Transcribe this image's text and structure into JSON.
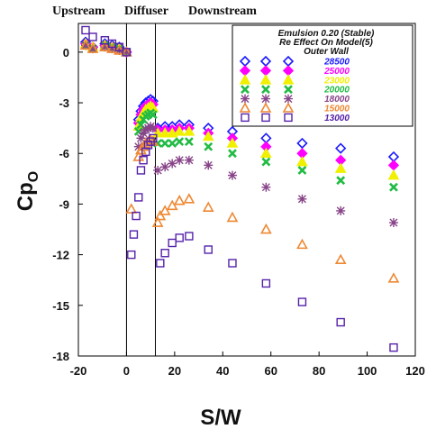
{
  "chart_data": {
    "type": "scatter",
    "region_labels": [
      "Upstream",
      "Diffuser",
      "Downstream"
    ],
    "xlabel": "S/W",
    "ylabel": "Cp",
    "ylabel_subscript": "O",
    "xlim": [
      -20,
      120
    ],
    "ylim": [
      -18,
      1.7
    ],
    "xticks": [
      -20,
      0,
      20,
      40,
      60,
      80,
      100,
      120
    ],
    "yticks": [
      0,
      -3,
      -6,
      -9,
      -12,
      -15,
      -18
    ],
    "vlines": [
      0,
      12
    ],
    "grid": false,
    "legend": {
      "position": "top-right",
      "title_lines": [
        "Emulsion 0.20 (Stable)",
        "Re  Effect On Model(5)",
        "Outer Wall"
      ]
    },
    "series": [
      {
        "name": "28500",
        "marker": "diamond",
        "color": "#1a1aff",
        "filled": false,
        "points": [
          [
            -17,
            0.6
          ],
          [
            -14,
            0.3
          ],
          [
            -9,
            0.5
          ],
          [
            -6,
            0.4
          ],
          [
            -3,
            0.3
          ],
          [
            0,
            0
          ],
          [
            5,
            -4.0
          ],
          [
            6,
            -3.5
          ],
          [
            7,
            -3.2
          ],
          [
            8,
            -3.0
          ],
          [
            9,
            -2.9
          ],
          [
            10,
            -2.8
          ],
          [
            11,
            -2.9
          ],
          [
            13,
            -4.5
          ],
          [
            16,
            -4.4
          ],
          [
            19,
            -4.4
          ],
          [
            22,
            -4.3
          ],
          [
            26,
            -4.3
          ],
          [
            34,
            -4.5
          ],
          [
            44,
            -4.7
          ],
          [
            58,
            -5.1
          ],
          [
            73,
            -5.4
          ],
          [
            89,
            -5.7
          ],
          [
            111,
            -6.2
          ]
        ]
      },
      {
        "name": "25000",
        "marker": "diamond",
        "color": "#ff00ff",
        "filled": true,
        "points": [
          [
            -17,
            0.5
          ],
          [
            -14,
            0.3
          ],
          [
            -9,
            0.4
          ],
          [
            -6,
            0.3
          ],
          [
            -3,
            0.2
          ],
          [
            0,
            0
          ],
          [
            5,
            -4.2
          ],
          [
            6,
            -3.7
          ],
          [
            7,
            -3.4
          ],
          [
            8,
            -3.2
          ],
          [
            9,
            -3.1
          ],
          [
            10,
            -3.0
          ],
          [
            11,
            -3.1
          ],
          [
            13,
            -4.6
          ],
          [
            16,
            -4.6
          ],
          [
            19,
            -4.6
          ],
          [
            22,
            -4.5
          ],
          [
            26,
            -4.5
          ],
          [
            34,
            -4.8
          ],
          [
            44,
            -5.1
          ],
          [
            58,
            -5.6
          ],
          [
            73,
            -6.0
          ],
          [
            89,
            -6.4
          ],
          [
            111,
            -6.7
          ]
        ]
      },
      {
        "name": "23000",
        "marker": "triangle",
        "color": "#f0f000",
        "filled": true,
        "points": [
          [
            -17,
            0.5
          ],
          [
            -14,
            0.3
          ],
          [
            -9,
            0.4
          ],
          [
            -6,
            0.3
          ],
          [
            -3,
            0.2
          ],
          [
            0,
            0
          ],
          [
            5,
            -4.4
          ],
          [
            6,
            -3.9
          ],
          [
            7,
            -3.6
          ],
          [
            8,
            -3.4
          ],
          [
            9,
            -3.3
          ],
          [
            10,
            -3.2
          ],
          [
            11,
            -3.3
          ],
          [
            13,
            -4.8
          ],
          [
            16,
            -4.8
          ],
          [
            19,
            -4.8
          ],
          [
            22,
            -4.7
          ],
          [
            26,
            -4.7
          ],
          [
            34,
            -5.0
          ],
          [
            44,
            -5.4
          ],
          [
            58,
            -6.0
          ],
          [
            73,
            -6.5
          ],
          [
            89,
            -6.9
          ],
          [
            111,
            -7.3
          ]
        ]
      },
      {
        "name": "20000",
        "marker": "x",
        "color": "#22bb44",
        "filled": false,
        "points": [
          [
            -17,
            0.4
          ],
          [
            -14,
            0.2
          ],
          [
            -9,
            0.4
          ],
          [
            -6,
            0.3
          ],
          [
            -3,
            0.2
          ],
          [
            0,
            0
          ],
          [
            5,
            -4.7
          ],
          [
            6,
            -4.3
          ],
          [
            7,
            -4.0
          ],
          [
            8,
            -3.8
          ],
          [
            9,
            -3.7
          ],
          [
            10,
            -3.6
          ],
          [
            11,
            -3.7
          ],
          [
            13,
            -5.4
          ],
          [
            16,
            -5.4
          ],
          [
            19,
            -5.4
          ],
          [
            22,
            -5.3
          ],
          [
            26,
            -5.3
          ],
          [
            34,
            -5.6
          ],
          [
            44,
            -6.0
          ],
          [
            58,
            -6.5
          ],
          [
            73,
            -7.0
          ],
          [
            89,
            -7.6
          ],
          [
            111,
            -8.0
          ]
        ]
      },
      {
        "name": "18000",
        "marker": "star",
        "color": "#884488",
        "filled": false,
        "points": [
          [
            -17,
            0.4
          ],
          [
            -14,
            0.2
          ],
          [
            -9,
            0.3
          ],
          [
            -6,
            0.2
          ],
          [
            -3,
            0.1
          ],
          [
            0,
            0
          ],
          [
            5,
            -5.6
          ],
          [
            6,
            -5.1
          ],
          [
            7,
            -4.8
          ],
          [
            8,
            -4.6
          ],
          [
            9,
            -4.5
          ],
          [
            10,
            -4.4
          ],
          [
            11,
            -4.5
          ],
          [
            13,
            -7.0
          ],
          [
            16,
            -6.8
          ],
          [
            19,
            -6.6
          ],
          [
            22,
            -6.4
          ],
          [
            26,
            -6.4
          ],
          [
            34,
            -6.7
          ],
          [
            44,
            -7.3
          ],
          [
            58,
            -8.0
          ],
          [
            73,
            -8.7
          ],
          [
            89,
            -9.4
          ],
          [
            111,
            -10.1
          ]
        ]
      },
      {
        "name": "15000",
        "marker": "triangle",
        "color": "#ee8833",
        "filled": false,
        "points": [
          [
            -17,
            0.4
          ],
          [
            -14,
            0.2
          ],
          [
            -9,
            0.3
          ],
          [
            -6,
            0.2
          ],
          [
            -3,
            0.1
          ],
          [
            0,
            0
          ],
          [
            2,
            -9.3
          ],
          [
            5,
            -6.2
          ],
          [
            6,
            -5.8
          ],
          [
            7,
            -5.6
          ],
          [
            8,
            -5.4
          ],
          [
            9,
            -5.3
          ],
          [
            10,
            -5.2
          ],
          [
            11,
            -5.3
          ],
          [
            13,
            -10.1
          ],
          [
            14,
            -9.7
          ],
          [
            16,
            -9.4
          ],
          [
            19,
            -9.1
          ],
          [
            22,
            -8.8
          ],
          [
            26,
            -8.7
          ],
          [
            34,
            -9.2
          ],
          [
            44,
            -9.8
          ],
          [
            58,
            -10.5
          ],
          [
            73,
            -11.4
          ],
          [
            89,
            -12.3
          ],
          [
            111,
            -13.4
          ]
        ]
      },
      {
        "name": "13000",
        "marker": "square",
        "color": "#5522aa",
        "filled": false,
        "points": [
          [
            -17,
            1.3
          ],
          [
            -14,
            0.9
          ],
          [
            -9,
            0.7
          ],
          [
            -6,
            0.5
          ],
          [
            -3,
            0.3
          ],
          [
            0,
            0
          ],
          [
            2,
            -12.0
          ],
          [
            3,
            -10.8
          ],
          [
            4,
            -9.7
          ],
          [
            5,
            -8.6
          ],
          [
            6,
            -7.0
          ],
          [
            7,
            -6.4
          ],
          [
            8,
            -5.9
          ],
          [
            9,
            -5.5
          ],
          [
            10,
            -5.3
          ],
          [
            11,
            -5.1
          ],
          [
            14,
            -12.5
          ],
          [
            16,
            -11.9
          ],
          [
            19,
            -11.3
          ],
          [
            22,
            -11.0
          ],
          [
            26,
            -10.9
          ],
          [
            34,
            -11.7
          ],
          [
            44,
            -12.5
          ],
          [
            58,
            -13.7
          ],
          [
            73,
            -14.8
          ],
          [
            89,
            -16.0
          ],
          [
            111,
            -17.5
          ]
        ]
      }
    ]
  }
}
